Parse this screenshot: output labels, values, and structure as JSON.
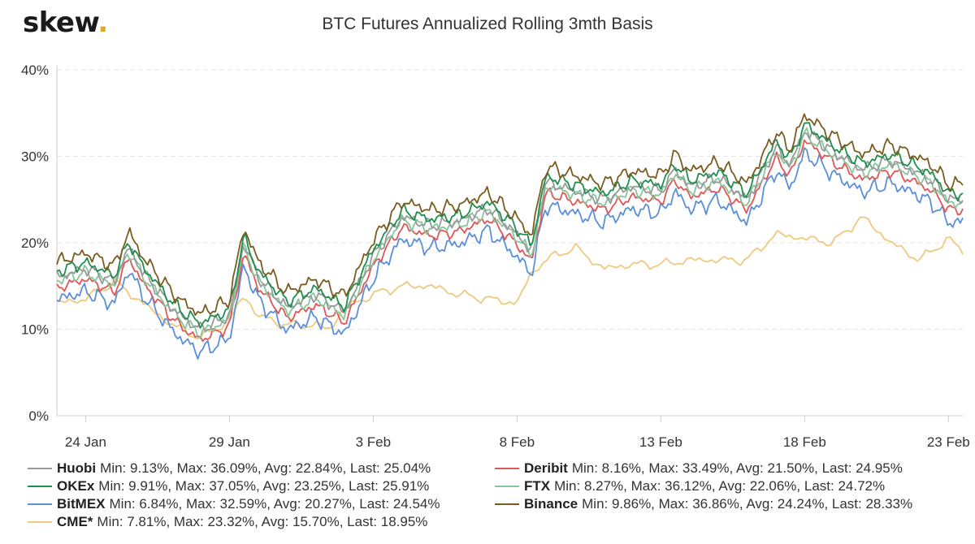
{
  "brand": {
    "logo_text": "skew",
    "logo_dot": "."
  },
  "chart_data": {
    "type": "line",
    "title": "BTC Futures Annualized Rolling 3mth Basis",
    "ylim": [
      0,
      40
    ],
    "y_ticks": [
      0,
      10,
      20,
      30,
      40
    ],
    "y_tick_labels": [
      "0%",
      "10%",
      "20%",
      "30%",
      "40%"
    ],
    "x_domain": [
      "2020-01-23",
      "2020-02-23T12:00"
    ],
    "x_ticks": [
      "2020-01-24",
      "2020-01-29",
      "2020-02-03",
      "2020-02-08",
      "2020-02-13",
      "2020-02-18",
      "2020-02-23"
    ],
    "x_tick_labels": [
      "24 Jan",
      "29 Jan",
      "3 Feb",
      "8 Feb",
      "13 Feb",
      "18 Feb",
      "23 Feb"
    ],
    "grid": "horizontal-dashed",
    "legend_position": "bottom",
    "base_series": {
      "x": [
        "2020-01-23",
        "2020-01-24",
        "2020-01-25",
        "2020-01-25T12:00",
        "2020-01-26",
        "2020-01-27",
        "2020-01-27T12:00",
        "2020-01-28",
        "2020-01-29",
        "2020-01-29T12:00",
        "2020-01-30",
        "2020-01-31",
        "2020-02-01",
        "2020-02-02",
        "2020-02-03",
        "2020-02-04",
        "2020-02-05",
        "2020-02-06",
        "2020-02-07",
        "2020-02-08",
        "2020-02-08T12:00",
        "2020-02-09",
        "2020-02-10",
        "2020-02-11",
        "2020-02-12",
        "2020-02-13",
        "2020-02-13T12:00",
        "2020-02-14",
        "2020-02-15",
        "2020-02-16",
        "2020-02-17",
        "2020-02-17T12:00",
        "2020-02-18",
        "2020-02-19",
        "2020-02-20",
        "2020-02-21",
        "2020-02-22",
        "2020-02-22T12:00",
        "2020-02-23",
        "2020-02-23T12:00"
      ],
      "y": [
        16.0,
        17.0,
        15.5,
        19.5,
        16.5,
        12.5,
        11.0,
        10.0,
        11.5,
        20.0,
        16.0,
        12.5,
        14.0,
        12.0,
        18.5,
        23.0,
        22.0,
        22.5,
        24.0,
        21.0,
        19.0,
        27.0,
        26.0,
        25.0,
        26.5,
        26.0,
        28.5,
        26.5,
        27.5,
        25.0,
        31.0,
        29.0,
        33.0,
        30.5,
        28.5,
        29.5,
        28.0,
        27.0,
        25.0,
        25.0
      ]
    },
    "series": [
      {
        "name": "Huobi",
        "color": "#999999",
        "offset": 0.0,
        "wobble": 0.7,
        "phase": 1.0,
        "stats_text": "Min: 9.13%, Max: 36.09%, Avg: 22.84%, Last: 25.04%"
      },
      {
        "name": "Deribit",
        "color": "#e05555",
        "offset": -1.2,
        "wobble": 0.6,
        "phase": 2.0,
        "stats_text": "Min: 8.16%, Max: 33.49%, Avg: 21.50%, Last: 24.95%"
      },
      {
        "name": "OKEx",
        "color": "#1e8f4e",
        "offset": 0.7,
        "wobble": 0.7,
        "phase": 3.0,
        "stats_text": "Min: 9.91%, Max: 37.05%, Avg: 23.25%, Last: 25.91%"
      },
      {
        "name": "FTX",
        "color": "#86c69a",
        "offset": -0.4,
        "wobble": 0.7,
        "phase": 4.0,
        "stats_text": "Min: 8.27%, Max: 36.12%, Avg: 22.06%, Last: 24.72%"
      },
      {
        "name": "BitMEX",
        "color": "#5b8fd9",
        "offset": -2.6,
        "wobble": 0.9,
        "phase": 5.0,
        "stats_text": "Min: 6.84%, Max: 32.59%, Avg: 20.27%, Last: 24.54%"
      },
      {
        "name": "Binance",
        "color": "#7a5c1e",
        "offset": 1.8,
        "wobble": 0.8,
        "phase": 6.0,
        "stats_text": "Min: 9.86%, Max: 36.86%, Avg: 24.24%, Last: 28.33%"
      },
      {
        "name": "CME*",
        "color": "#efc97d",
        "stats_text": "Min: 7.81%, Max: 23.32%, Avg: 15.70%, Last: 18.95%",
        "x": [
          "2020-01-23",
          "2020-01-24",
          "2020-01-25",
          "2020-01-26",
          "2020-01-27",
          "2020-01-28",
          "2020-01-29",
          "2020-01-29T12:00",
          "2020-01-30",
          "2020-01-31",
          "2020-02-01",
          "2020-02-01T12:00",
          "2020-02-02",
          "2020-02-03",
          "2020-02-04",
          "2020-02-05",
          "2020-02-06",
          "2020-02-07",
          "2020-02-08",
          "2020-02-08T12:00",
          "2020-02-09",
          "2020-02-10",
          "2020-02-11",
          "2020-02-12",
          "2020-02-13",
          "2020-02-14",
          "2020-02-15",
          "2020-02-16",
          "2020-02-17",
          "2020-02-18",
          "2020-02-19",
          "2020-02-20",
          "2020-02-21",
          "2020-02-22",
          "2020-02-23",
          "2020-02-23T12:00"
        ],
        "y": [
          13.0,
          13.5,
          15.5,
          13.0,
          10.5,
          9.0,
          11.0,
          14.0,
          11.5,
          10.5,
          10.5,
          10.0,
          12.5,
          14.0,
          15.0,
          15.0,
          14.0,
          13.5,
          13.0,
          16.5,
          18.0,
          19.5,
          17.0,
          17.5,
          17.5,
          18.0,
          18.0,
          18.0,
          21.0,
          20.5,
          20.0,
          23.0,
          20.0,
          18.0,
          20.5,
          19.0
        ]
      }
    ]
  }
}
